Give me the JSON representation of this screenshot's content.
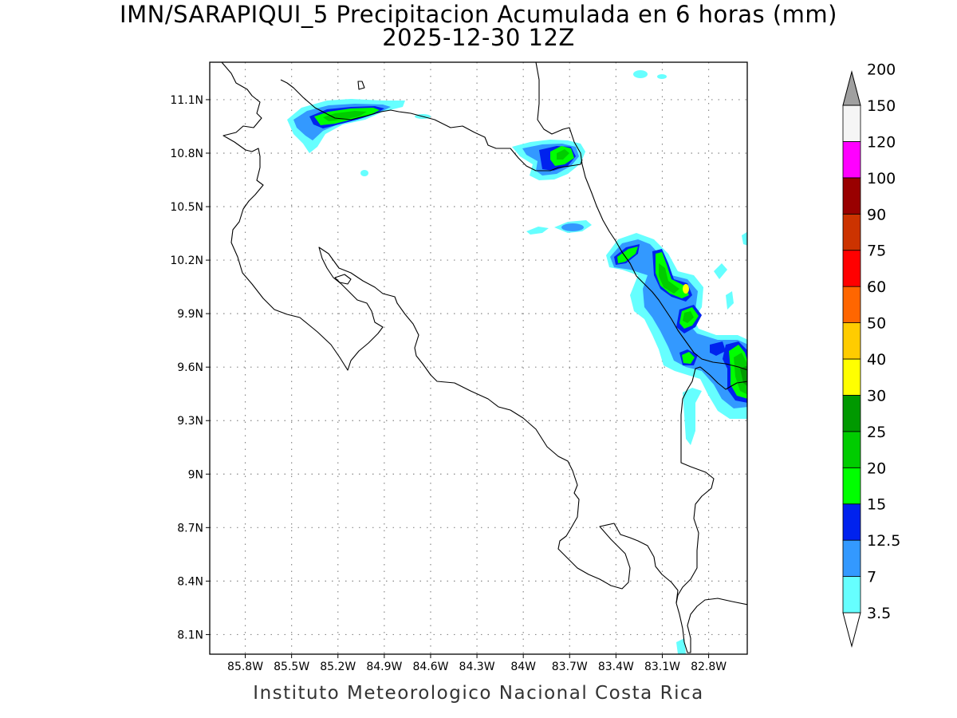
{
  "title": {
    "line1": "IMN/SARAPIQUI_5 Precipitacion Acumulada en 6 horas (mm)",
    "line2": "2025-12-30 12Z"
  },
  "footer": "Instituto Meteorologico Nacional Costa Rica",
  "map": {
    "lon_range": [
      -86.03,
      -82.55
    ],
    "lat_range": [
      7.99,
      11.31
    ],
    "x_ticks": [
      "85.8W",
      "85.5W",
      "85.2W",
      "84.9W",
      "84.6W",
      "84.3W",
      "84W",
      "83.7W",
      "83.4W",
      "83.1W",
      "82.8W"
    ],
    "x_tick_values": [
      -85.8,
      -85.5,
      -85.2,
      -84.9,
      -84.6,
      -84.3,
      -84.0,
      -83.7,
      -83.4,
      -83.1,
      -82.8
    ],
    "y_ticks": [
      "11.1N",
      "10.8N",
      "10.5N",
      "10.2N",
      "9.9N",
      "9.6N",
      "9.3N",
      "9N",
      "8.7N",
      "8.4N",
      "8.1N"
    ],
    "y_tick_values": [
      11.1,
      10.8,
      10.5,
      10.2,
      9.9,
      9.6,
      9.3,
      9.0,
      8.7,
      8.4,
      8.1
    ],
    "grid": "dotted"
  },
  "colorbar": {
    "levels": [
      "3.5",
      "7",
      "12.5",
      "15",
      "20",
      "25",
      "30",
      "40",
      "50",
      "60",
      "75",
      "90",
      "100",
      "120",
      "150",
      "200"
    ],
    "colors": [
      "#66ffff",
      "#3399ff",
      "#0022ee",
      "#00ff00",
      "#00cc00",
      "#009900",
      "#ffff00",
      "#ffcc00",
      "#ff6600",
      "#ff0000",
      "#cc3300",
      "#990000",
      "#ff00ff",
      "#9933cc",
      "#f5f5f5",
      "#a0a0a0"
    ]
  },
  "colors": {
    "light_cyan": "#66ffff",
    "sky_blue": "#3399ff",
    "blue": "#0022ee",
    "bright_green": "#00ff00",
    "green": "#00cc00",
    "dark_green": "#009900",
    "yellow": "#ffff00"
  }
}
